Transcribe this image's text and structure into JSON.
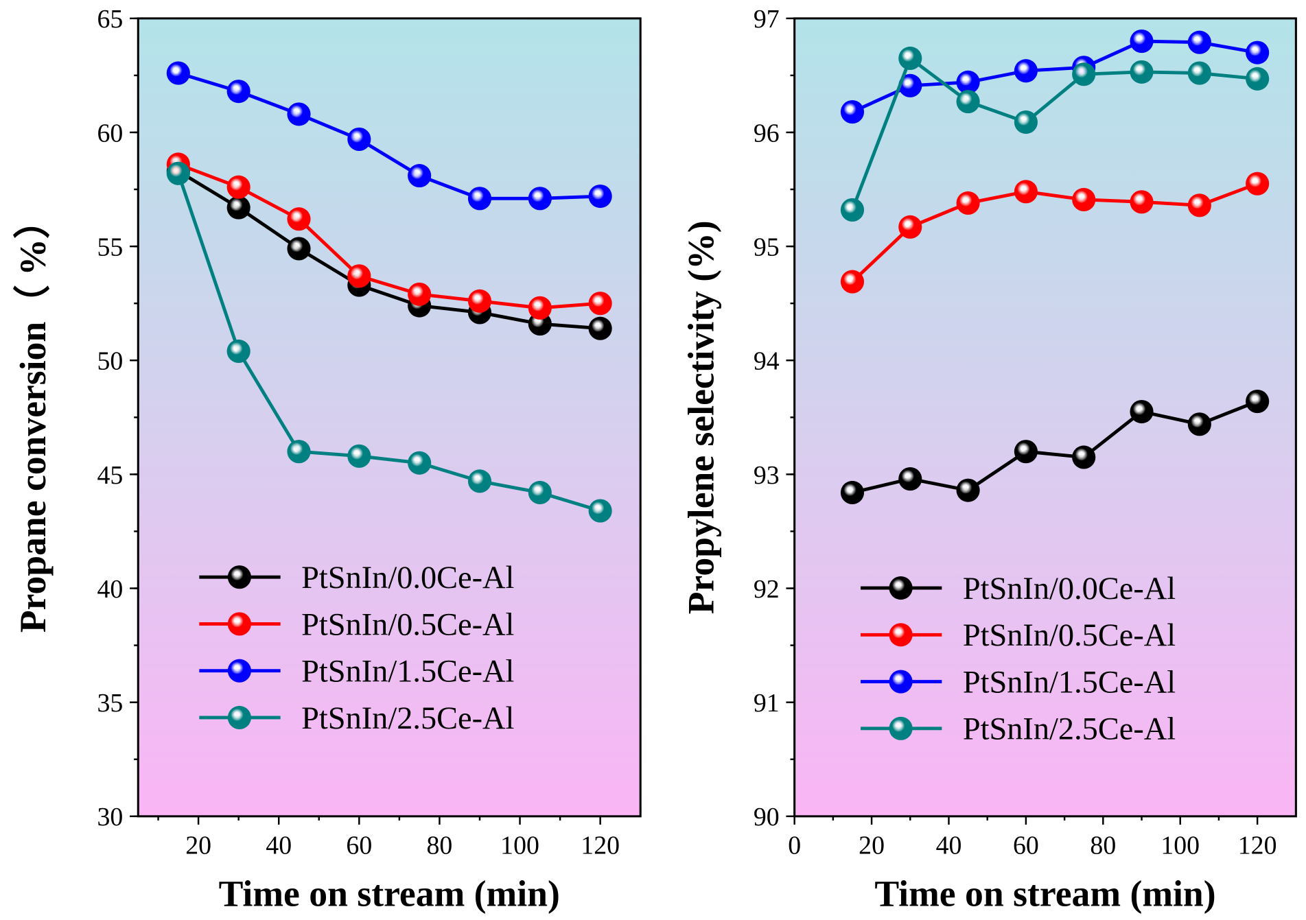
{
  "chart_data": [
    {
      "type": "line",
      "xlabel": "Time on stream (min)",
      "ylabel": "Propane conversion（ %）",
      "xlim": [
        5,
        130
      ],
      "ylim": [
        30,
        65
      ],
      "xticks": [
        20,
        40,
        60,
        80,
        100,
        120
      ],
      "yticks": [
        30,
        35,
        40,
        45,
        50,
        55,
        60,
        65
      ],
      "legend_position": "bottom-center",
      "x": [
        15,
        30,
        45,
        60,
        75,
        90,
        105,
        120
      ],
      "series": [
        {
          "name": "PtSnIn/0.0Ce-Al",
          "color": "#000000",
          "values": [
            58.3,
            56.7,
            54.9,
            53.3,
            52.4,
            52.1,
            51.6,
            51.4
          ]
        },
        {
          "name": "PtSnIn/0.5Ce-Al",
          "color": "#ff0000",
          "values": [
            58.6,
            57.6,
            56.2,
            53.7,
            52.9,
            52.6,
            52.3,
            52.5
          ]
        },
        {
          "name": "PtSnIn/1.5Ce-Al",
          "color": "#0000ff",
          "values": [
            62.6,
            61.8,
            60.8,
            59.7,
            58.1,
            57.1,
            57.1,
            57.2
          ]
        },
        {
          "name": "PtSnIn/2.5Ce-Al",
          "color": "#008080",
          "values": [
            58.2,
            50.4,
            46.0,
            45.8,
            45.5,
            44.7,
            44.2,
            43.4
          ]
        }
      ]
    },
    {
      "type": "line",
      "xlabel": "Time on stream (min)",
      "ylabel": "Propylene selectivity (%)",
      "xlim": [
        0,
        130
      ],
      "ylim": [
        90,
        97
      ],
      "xticks": [
        0,
        20,
        40,
        60,
        80,
        100,
        120
      ],
      "yticks": [
        90,
        91,
        92,
        93,
        94,
        95,
        96,
        97
      ],
      "legend_position": "bottom-center",
      "x": [
        15,
        30,
        45,
        60,
        75,
        90,
        105,
        120
      ],
      "series": [
        {
          "name": "PtSnIn/0.0Ce-Al",
          "color": "#000000",
          "values": [
            92.84,
            92.96,
            92.86,
            93.2,
            93.15,
            93.55,
            93.44,
            93.64
          ]
        },
        {
          "name": "PtSnIn/0.5Ce-Al",
          "color": "#ff0000",
          "values": [
            94.69,
            95.17,
            95.38,
            95.48,
            95.41,
            95.39,
            95.36,
            95.55
          ]
        },
        {
          "name": "PtSnIn/1.5Ce-Al",
          "color": "#0000ff",
          "values": [
            96.18,
            96.41,
            96.44,
            96.54,
            96.57,
            96.8,
            96.79,
            96.7
          ]
        },
        {
          "name": "PtSnIn/2.5Ce-Al",
          "color": "#008080",
          "values": [
            95.32,
            96.65,
            96.27,
            96.09,
            96.51,
            96.53,
            96.52,
            96.47
          ]
        }
      ]
    }
  ]
}
